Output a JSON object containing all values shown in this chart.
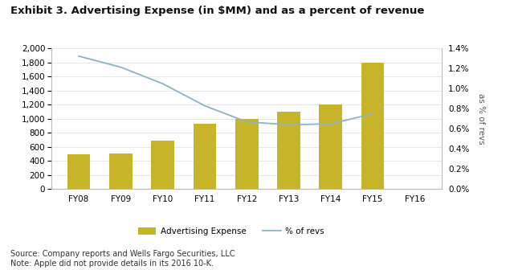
{
  "title": "Exhibit 3. Advertising Expense (in $MM) and as a percent of revenue",
  "categories": [
    "FY08",
    "FY09",
    "FY10",
    "FY11",
    "FY12",
    "FY13",
    "FY14",
    "FY15",
    "FY16"
  ],
  "bar_values": [
    490,
    501,
    691,
    933,
    1000,
    1100,
    1200,
    1800,
    null
  ],
  "line_values": [
    0.01325,
    0.01215,
    0.0105,
    0.0083,
    0.0067,
    0.0064,
    0.0065,
    0.0075,
    null
  ],
  "bar_color": "#c8b428",
  "line_color": "#8ab4c8",
  "ylim_left": [
    0,
    2000
  ],
  "ylim_right": [
    0.0,
    0.014
  ],
  "yticks_left": [
    0,
    200,
    400,
    600,
    800,
    1000,
    1200,
    1400,
    1600,
    1800,
    2000
  ],
  "yticks_right_vals": [
    0.0,
    0.002,
    0.004,
    0.006,
    0.008,
    0.01,
    0.012,
    0.014
  ],
  "yticks_right_labels": [
    "0.0%",
    "0.2%",
    "0.4%",
    "0.6%",
    "0.8%",
    "1.0%",
    "1.2%",
    "1.4%"
  ],
  "ylabel_right": "as % of revs",
  "legend_bar_label": "Advertising Expense",
  "legend_line_label": "% of revs",
  "source_text": "Source: Company reports and Wells Fargo Securities, LLC\nNote: Apple did not provide details in its 2016 10-K.",
  "background_color": "#ffffff",
  "plot_bg_color": "#ffffff",
  "title_fontsize": 9.5,
  "tick_fontsize": 7.5,
  "source_fontsize": 7.0
}
